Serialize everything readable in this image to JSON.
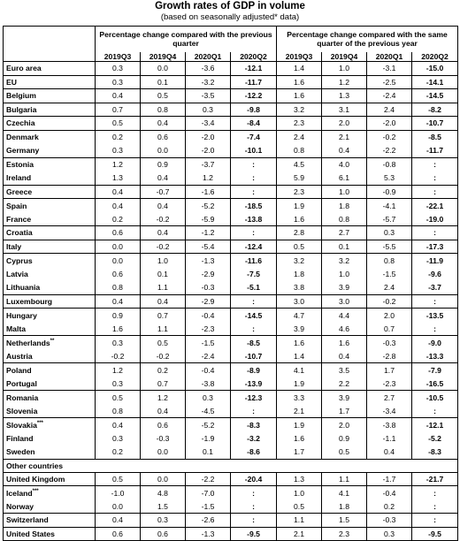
{
  "header": {
    "title": "Growth rates of GDP in volume",
    "subtitle": "(based on seasonally adjusted* data)",
    "group_qoq": "Percentage change compared with the previous quarter",
    "group_yoy": "Percentage change compared with the same quarter of the previous year",
    "quarters": [
      "2019Q3",
      "2019Q4",
      "2020Q1",
      "2020Q2"
    ]
  },
  "highlight_color": "#000000",
  "rows": [
    {
      "name": "Euro area",
      "sup": "",
      "qoq": [
        "0.3",
        "0.0",
        "-3.6",
        "-12.1"
      ],
      "yoy": [
        "1.4",
        "1.0",
        "-3.1",
        "-15.0"
      ],
      "band": true
    },
    {
      "name": "EU",
      "sup": "",
      "qoq": [
        "0.3",
        "0.1",
        "-3.2",
        "-11.7"
      ],
      "yoy": [
        "1.6",
        "1.2",
        "-2.5",
        "-14.1"
      ],
      "band": true
    },
    {
      "name": "Belgium",
      "sup": "",
      "qoq": [
        "0.4",
        "0.5",
        "-3.5",
        "-12.2"
      ],
      "yoy": [
        "1.6",
        "1.3",
        "-2.4",
        "-14.5"
      ],
      "band": true
    },
    {
      "name": "Bulgaria",
      "sup": "",
      "qoq": [
        "0.7",
        "0.8",
        "0.3",
        "-9.8"
      ],
      "yoy": [
        "3.2",
        "3.1",
        "2.4",
        "-8.2"
      ],
      "band": true
    },
    {
      "name": "Czechia",
      "sup": "",
      "qoq": [
        "0.5",
        "0.4",
        "-3.4",
        "-8.4"
      ],
      "yoy": [
        "2.3",
        "2.0",
        "-2.0",
        "-10.7"
      ],
      "band": true
    },
    {
      "name": "Denmark",
      "sup": "",
      "qoq": [
        "0.2",
        "0.6",
        "-2.0",
        "-7.4"
      ],
      "yoy": [
        "2.4",
        "2.1",
        "-0.2",
        "-8.5"
      ],
      "band": true
    },
    {
      "name": "Germany",
      "sup": "",
      "qoq": [
        "0.3",
        "0.0",
        "-2.0",
        "-10.1"
      ],
      "yoy": [
        "0.8",
        "0.4",
        "-2.2",
        "-11.7"
      ],
      "band": false
    },
    {
      "name": "Estonia",
      "sup": "",
      "qoq": [
        "1.2",
        "0.9",
        "-3.7",
        ":"
      ],
      "yoy": [
        "4.5",
        "4.0",
        "-0.8",
        ":"
      ],
      "band": true
    },
    {
      "name": "Ireland",
      "sup": "",
      "qoq": [
        "1.3",
        "0.4",
        "1.2",
        ":"
      ],
      "yoy": [
        "5.9",
        "6.1",
        "5.3",
        ":"
      ],
      "band": false
    },
    {
      "name": "Greece",
      "sup": "",
      "qoq": [
        "0.4",
        "-0.7",
        "-1.6",
        ":"
      ],
      "yoy": [
        "2.3",
        "1.0",
        "-0.9",
        ":"
      ],
      "band": true
    },
    {
      "name": "Spain",
      "sup": "",
      "qoq": [
        "0.4",
        "0.4",
        "-5.2",
        "-18.5"
      ],
      "yoy": [
        "1.9",
        "1.8",
        "-4.1",
        "-22.1"
      ],
      "band": true
    },
    {
      "name": "France",
      "sup": "",
      "qoq": [
        "0.2",
        "-0.2",
        "-5.9",
        "-13.8"
      ],
      "yoy": [
        "1.6",
        "0.8",
        "-5.7",
        "-19.0"
      ],
      "band": false
    },
    {
      "name": "Croatia",
      "sup": "",
      "qoq": [
        "0.6",
        "0.4",
        "-1.2",
        ":"
      ],
      "yoy": [
        "2.8",
        "2.7",
        "0.3",
        ":"
      ],
      "band": true
    },
    {
      "name": "Italy",
      "sup": "",
      "qoq": [
        "0.0",
        "-0.2",
        "-5.4",
        "-12.4"
      ],
      "yoy": [
        "0.5",
        "0.1",
        "-5.5",
        "-17.3"
      ],
      "band": true
    },
    {
      "name": "Cyprus",
      "sup": "",
      "qoq": [
        "0.0",
        "1.0",
        "-1.3",
        "-11.6"
      ],
      "yoy": [
        "3.2",
        "3.2",
        "0.8",
        "-11.9"
      ],
      "band": true
    },
    {
      "name": "Latvia",
      "sup": "",
      "qoq": [
        "0.6",
        "0.1",
        "-2.9",
        "-7.5"
      ],
      "yoy": [
        "1.8",
        "1.0",
        "-1.5",
        "-9.6"
      ],
      "band": false
    },
    {
      "name": "Lithuania",
      "sup": "",
      "qoq": [
        "0.8",
        "1.1",
        "-0.3",
        "-5.1"
      ],
      "yoy": [
        "3.8",
        "3.9",
        "2.4",
        "-3.7"
      ],
      "band": false
    },
    {
      "name": "Luxembourg",
      "sup": "",
      "qoq": [
        "0.4",
        "0.4",
        "-2.9",
        ":"
      ],
      "yoy": [
        "3.0",
        "3.0",
        "-0.2",
        ":"
      ],
      "band": true
    },
    {
      "name": "Hungary",
      "sup": "",
      "qoq": [
        "0.9",
        "0.7",
        "-0.4",
        "-14.5"
      ],
      "yoy": [
        "4.7",
        "4.4",
        "2.0",
        "-13.5"
      ],
      "band": true
    },
    {
      "name": "Malta",
      "sup": "",
      "qoq": [
        "1.6",
        "1.1",
        "-2.3",
        ":"
      ],
      "yoy": [
        "3.9",
        "4.6",
        "0.7",
        ":"
      ],
      "band": false
    },
    {
      "name": "Netherlands",
      "sup": "**",
      "qoq": [
        "0.3",
        "0.5",
        "-1.5",
        "-8.5"
      ],
      "yoy": [
        "1.6",
        "1.6",
        "-0.3",
        "-9.0"
      ],
      "band": true
    },
    {
      "name": "Austria",
      "sup": "",
      "qoq": [
        "-0.2",
        "-0.2",
        "-2.4",
        "-10.7"
      ],
      "yoy": [
        "1.4",
        "0.4",
        "-2.8",
        "-13.3"
      ],
      "band": false
    },
    {
      "name": "Poland",
      "sup": "",
      "qoq": [
        "1.2",
        "0.2",
        "-0.4",
        "-8.9"
      ],
      "yoy": [
        "4.1",
        "3.5",
        "1.7",
        "-7.9"
      ],
      "band": true
    },
    {
      "name": "Portugal",
      "sup": "",
      "qoq": [
        "0.3",
        "0.7",
        "-3.8",
        "-13.9"
      ],
      "yoy": [
        "1.9",
        "2.2",
        "-2.3",
        "-16.5"
      ],
      "band": false
    },
    {
      "name": "Romania",
      "sup": "",
      "qoq": [
        "0.5",
        "1.2",
        "0.3",
        "-12.3"
      ],
      "yoy": [
        "3.3",
        "3.9",
        "2.7",
        "-10.5"
      ],
      "band": true
    },
    {
      "name": "Slovenia",
      "sup": "",
      "qoq": [
        "0.8",
        "0.4",
        "-4.5",
        ":"
      ],
      "yoy": [
        "2.1",
        "1.7",
        "-3.4",
        ":"
      ],
      "band": false
    },
    {
      "name": "Slovakia",
      "sup": "***",
      "qoq": [
        "0.4",
        "0.6",
        "-5.2",
        "-8.3"
      ],
      "yoy": [
        "1.9",
        "2.0",
        "-3.8",
        "-12.1"
      ],
      "band": true
    },
    {
      "name": "Finland",
      "sup": "",
      "qoq": [
        "0.3",
        "-0.3",
        "-1.9",
        "-3.2"
      ],
      "yoy": [
        "1.6",
        "0.9",
        "-1.1",
        "-5.2"
      ],
      "band": false
    },
    {
      "name": "Sweden",
      "sup": "",
      "qoq": [
        "0.2",
        "0.0",
        "0.1",
        "-8.6"
      ],
      "yoy": [
        "1.7",
        "0.5",
        "0.4",
        "-8.3"
      ],
      "band": false
    }
  ],
  "other_label": "Other countries",
  "other_rows": [
    {
      "name": "United Kingdom",
      "sup": "",
      "qoq": [
        "0.5",
        "0.0",
        "-2.2",
        "-20.4"
      ],
      "yoy": [
        "1.3",
        "1.1",
        "-1.7",
        "-21.7"
      ],
      "band": false
    },
    {
      "name": "Iceland",
      "sup": "***",
      "qoq": [
        "-1.0",
        "4.8",
        "-7.0",
        ":"
      ],
      "yoy": [
        "1.0",
        "4.1",
        "-0.4",
        ":"
      ],
      "band": true
    },
    {
      "name": "Norway",
      "sup": "",
      "qoq": [
        "0.0",
        "1.5",
        "-1.5",
        ":"
      ],
      "yoy": [
        "0.5",
        "1.8",
        "0.2",
        ":"
      ],
      "band": false
    },
    {
      "name": "Switzerland",
      "sup": "",
      "qoq": [
        "0.4",
        "0.3",
        "-2.6",
        ":"
      ],
      "yoy": [
        "1.1",
        "1.5",
        "-0.3",
        ":"
      ],
      "band": true
    },
    {
      "name": "United States",
      "sup": "",
      "qoq": [
        "0.6",
        "0.6",
        "-1.3",
        "-9.5"
      ],
      "yoy": [
        "2.1",
        "2.3",
        "0.3",
        "-9.5"
      ],
      "band": true
    }
  ]
}
